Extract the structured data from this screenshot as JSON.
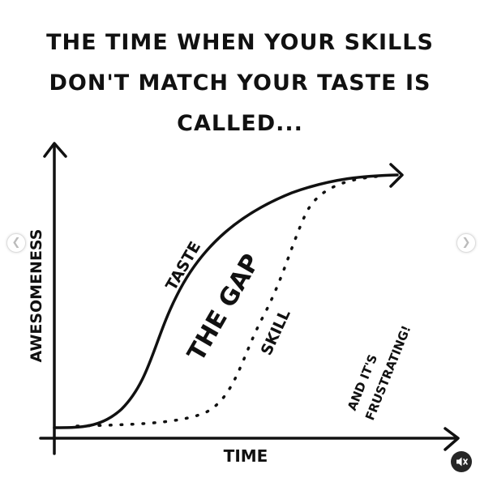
{
  "title": {
    "line1": "THE TIME WHEN YOUR SKILLS",
    "line2": "DON'T MATCH YOUR TASTE IS",
    "line3": "CALLED..."
  },
  "axes": {
    "x_label": "TIME",
    "y_label": "AWESOMENESS"
  },
  "curves": {
    "taste_label": "TASTE",
    "skill_label": "SKILL",
    "gap_label": "THE GAP"
  },
  "annotation": {
    "line1": "AND IT'S",
    "line2": "FRUSTRATING!"
  },
  "controls": {
    "prev_icon": "chevron-left-icon",
    "next_icon": "chevron-right-icon",
    "mute_icon": "speaker-muted-icon"
  },
  "colors": {
    "ink": "#111111",
    "background": "#ffffff"
  }
}
